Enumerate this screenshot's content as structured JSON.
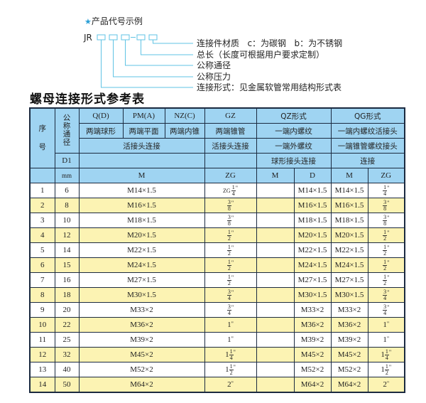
{
  "legend": {
    "star_icon": "star-icon",
    "title": "产品代号示例",
    "prefix": "JR",
    "dash": "-",
    "labels": [
      "连接件材质   c：为碳钢   b：为不锈钢",
      "总长（长度可根据用户要求定制）",
      "公称通径",
      "公称压力",
      "连接形式：见金属软管常用结构形式表"
    ],
    "accent": "#5fc3e4"
  },
  "heading": "螺母连接形式参考表",
  "table": {
    "header": {
      "seq": "序\n\n号",
      "nominal": "公称通径",
      "qd": "Q(D)",
      "pm": "PM(A)",
      "nz": "NZ(C)",
      "gz": "GZ",
      "qz": "QZ形式",
      "qg": "QG形式",
      "qd_desc": "两端球形",
      "pm_desc": "两端平面",
      "nz_desc": "两端内锥",
      "gz_desc": "两端锥管",
      "qz_desc": "一端内螺纹",
      "qg_desc": "一端内螺纹活接头",
      "union1": "活接头连接",
      "union2": "活接头连接",
      "qz_desc2": "一端外螺纹",
      "qg_desc2": "一端锥管螺纹接头",
      "d1": "D1",
      "qz_desc3": "球形接头连接",
      "qg_desc3": "连接",
      "mm": "mm",
      "m1": "M",
      "zg1": "ZG",
      "m2": "M",
      "d": "D",
      "m3": "M",
      "zg2": "ZG"
    },
    "rows": [
      {
        "no": "1",
        "dn": "6",
        "m": "M14×1.5",
        "zg": {
          "pre": "ZG",
          "w": "",
          "n": "1",
          "d": "4"
        },
        "qz_m": "",
        "qz_d": "M14×1.5",
        "qg_m": "M14×1.5",
        "qg_zg": {
          "w": "",
          "n": "1",
          "d": "4"
        }
      },
      {
        "no": "2",
        "dn": "8",
        "m": "M16×1.5",
        "zg": {
          "w": "",
          "n": "3",
          "d": "8"
        },
        "qz_m": "",
        "qz_d": "M16×1.5",
        "qg_m": "M16×1.5",
        "qg_zg": {
          "w": "",
          "n": "3",
          "d": "8"
        }
      },
      {
        "no": "3",
        "dn": "10",
        "m": "M18×1.5",
        "zg": {
          "w": "",
          "n": "3",
          "d": "8"
        },
        "qz_m": "",
        "qz_d": "M18×1.5",
        "qg_m": "M18×1.5",
        "qg_zg": {
          "w": "",
          "n": "3",
          "d": "8"
        }
      },
      {
        "no": "4",
        "dn": "12",
        "m": "M20×1.5",
        "zg": {
          "w": "",
          "n": "1",
          "d": "2"
        },
        "qz_m": "",
        "qz_d": "M20×1.5",
        "qg_m": "M20×1.5",
        "qg_zg": {
          "w": "",
          "n": "1",
          "d": "2"
        }
      },
      {
        "no": "5",
        "dn": "14",
        "m": "M22×1.5",
        "zg": {
          "w": "",
          "n": "1",
          "d": "2"
        },
        "qz_m": "",
        "qz_d": "M22×1.5",
        "qg_m": "M22×1.5",
        "qg_zg": {
          "w": "",
          "n": "1",
          "d": "2"
        }
      },
      {
        "no": "6",
        "dn": "15",
        "m": "M24×1.5",
        "zg": {
          "w": "",
          "n": "1",
          "d": "2"
        },
        "qz_m": "",
        "qz_d": "M24×1.5",
        "qg_m": "M24×1.5",
        "qg_zg": {
          "w": "",
          "n": "1",
          "d": "2"
        }
      },
      {
        "no": "7",
        "dn": "16",
        "m": "M27×1.5",
        "zg": {
          "w": "",
          "n": "1",
          "d": "2"
        },
        "qz_m": "",
        "qz_d": "M27×1.5",
        "qg_m": "M27×1.5",
        "qg_zg": {
          "w": "",
          "n": "1",
          "d": "2"
        }
      },
      {
        "no": "8",
        "dn": "18",
        "m": "M30×1.5",
        "zg": {
          "w": "",
          "n": "3",
          "d": "4"
        },
        "qz_m": "",
        "qz_d": "M30×1.5",
        "qg_m": "M30×1.5",
        "qg_zg": {
          "w": "",
          "n": "3",
          "d": "4"
        }
      },
      {
        "no": "9",
        "dn": "20",
        "m": "M33×2",
        "zg": {
          "w": "",
          "n": "3",
          "d": "4"
        },
        "qz_m": "",
        "qz_d": "M33×2",
        "qg_m": "M33×2",
        "qg_zg": {
          "w": "",
          "n": "3",
          "d": "4"
        }
      },
      {
        "no": "10",
        "dn": "22",
        "m": "M36×2",
        "zg": {
          "w": "1"
        },
        "qz_m": "",
        "qz_d": "M36×2",
        "qg_m": "M36×2",
        "qg_zg": {
          "w": "1"
        }
      },
      {
        "no": "11",
        "dn": "25",
        "m": "M39×2",
        "zg": {
          "w": "1"
        },
        "qz_m": "",
        "qz_d": "M39×2",
        "qg_m": "M39×2",
        "qg_zg": {
          "w": "1"
        }
      },
      {
        "no": "12",
        "dn": "32",
        "m": "M45×2",
        "zg": {
          "w": "1",
          "n": "1",
          "d": "4"
        },
        "qz_m": "",
        "qz_d": "M45×2",
        "qg_m": "M45×2",
        "qg_zg": {
          "w": "1",
          "n": "1",
          "d": "4"
        }
      },
      {
        "no": "13",
        "dn": "40",
        "m": "M52×2",
        "zg": {
          "w": "1",
          "n": "1",
          "d": "2"
        },
        "qz_m": "",
        "qz_d": "M52×2",
        "qg_m": "M52×2",
        "qg_zg": {
          "w": "1",
          "n": "1",
          "d": "2"
        }
      },
      {
        "no": "14",
        "dn": "50",
        "m": "M64×2",
        "zg": {
          "w": "2"
        },
        "qz_m": "",
        "qz_d": "M64×2",
        "qg_m": "M64×2",
        "qg_zg": {
          "w": "2"
        }
      }
    ],
    "colors": {
      "header": "#9fd4f2",
      "alt_row": "#fcf3b3"
    }
  }
}
